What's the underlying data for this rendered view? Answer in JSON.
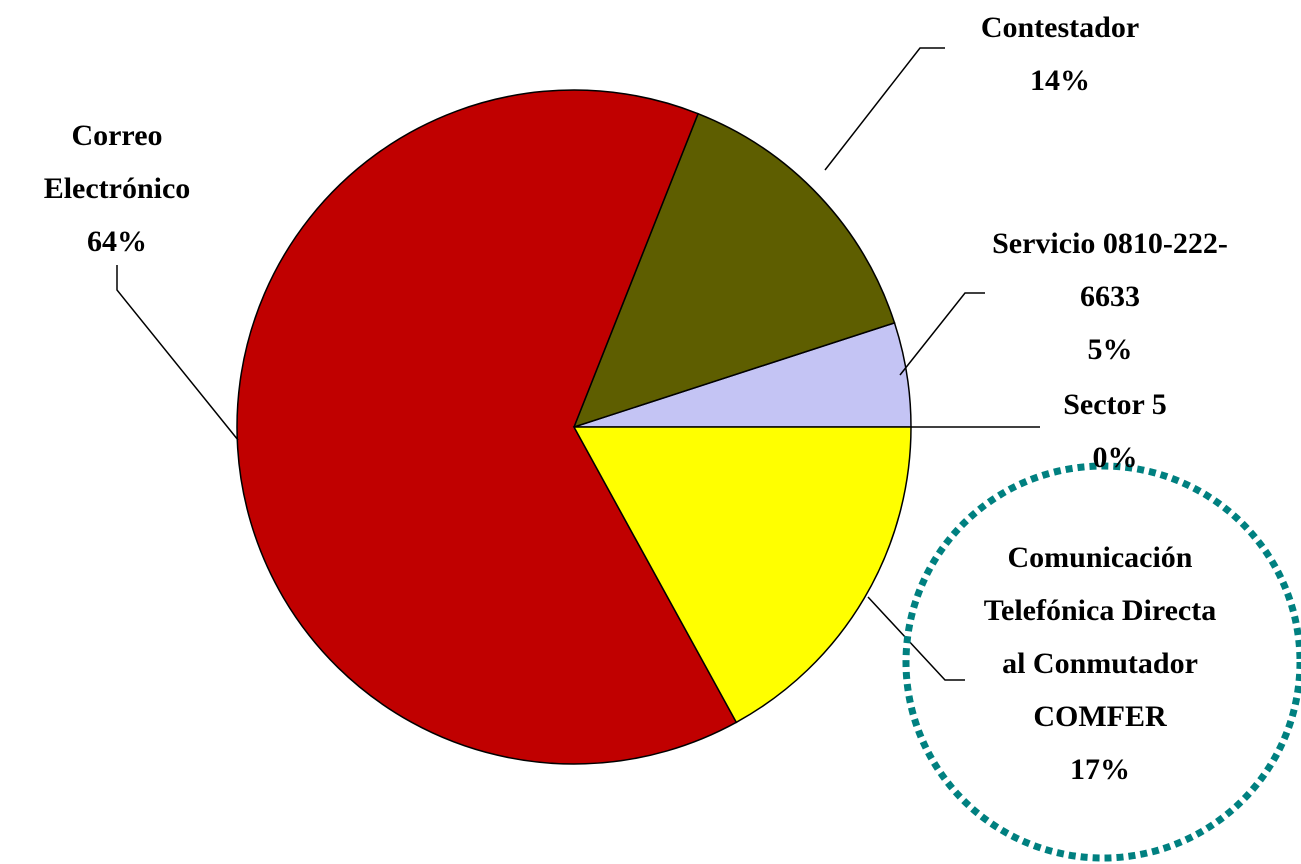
{
  "chart_data": {
    "type": "pie",
    "categories": [
      "Sector 5",
      "Servicio 0810-222-6633",
      "Contestador",
      "Correo Electrónico",
      "Comunicación Telefónica Directa al Conmutador COMFER"
    ],
    "values": [
      0,
      5,
      14,
      64,
      17
    ],
    "value_labels": [
      "0%",
      "5%",
      "14%",
      "64%",
      "17%"
    ],
    "colors": [
      "#9999ff",
      "#c4c4f4",
      "#5e5e00",
      "#c00000",
      "#ffff00"
    ]
  }
}
